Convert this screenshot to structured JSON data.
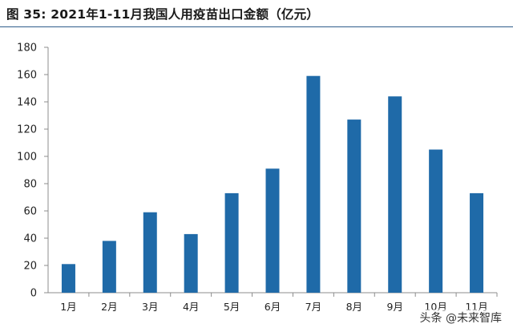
{
  "chart_data": {
    "type": "bar",
    "title": "图  35:  2021年1-11月我国人用疫苗出口金额（亿元）",
    "xlabel": "",
    "ylabel": "",
    "categories": [
      "1月",
      "2月",
      "3月",
      "4月",
      "5月",
      "6月",
      "7月",
      "8月",
      "9月",
      "10月",
      "11月"
    ],
    "values": [
      21,
      38,
      59,
      43,
      73,
      91,
      159,
      127,
      144,
      105,
      73
    ],
    "ylim": [
      0,
      180
    ],
    "yticks": [
      0,
      20,
      40,
      60,
      80,
      100,
      120,
      140,
      160,
      180
    ],
    "grid": false,
    "legend": "none"
  },
  "colors": {
    "bar": "#1f6aa8",
    "axis": "#8c8c8c",
    "text": "#222222",
    "title_rule": "#2f5d8c"
  },
  "watermark": "头条 @未来智库"
}
